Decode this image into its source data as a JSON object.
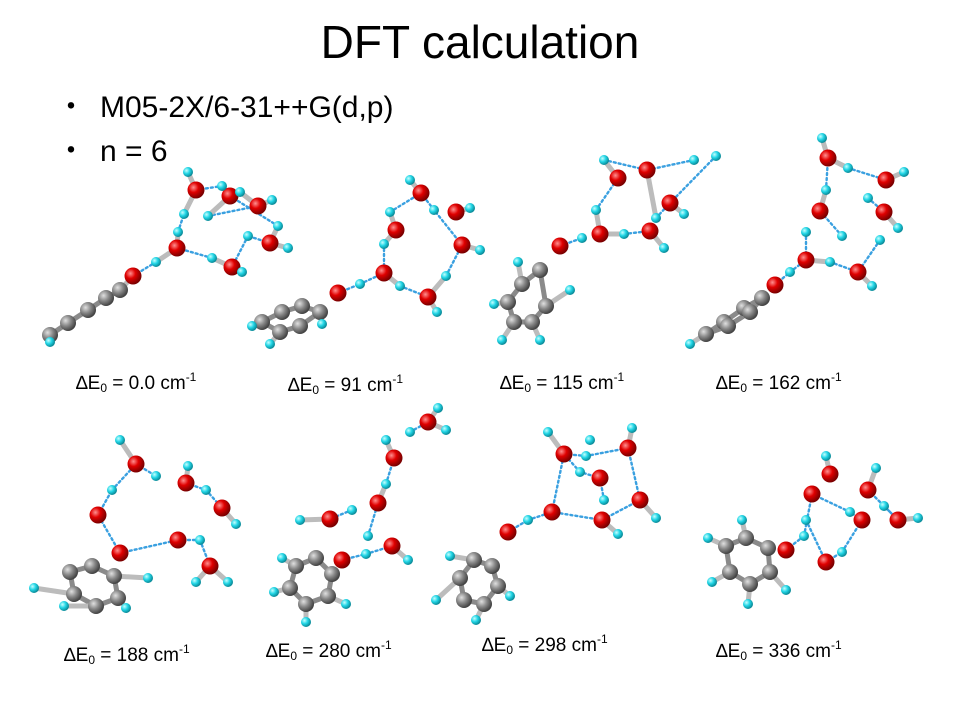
{
  "title": "DFT calculation",
  "bullets": [
    {
      "marker": "・",
      "text": "M05-2X/6-31++G(d,p)"
    },
    {
      "marker": "・",
      "text": "n = 6"
    }
  ],
  "energy_label": {
    "delta": "∆",
    "symbol": "E",
    "subscript": "0",
    "eq": " = ",
    "unit": " cm",
    "exponent": "-1"
  },
  "structures": [
    {
      "energy": "0.0"
    },
    {
      "energy": "91"
    },
    {
      "energy": "115"
    },
    {
      "energy": "162"
    },
    {
      "energy": "188"
    },
    {
      "energy": "280"
    },
    {
      "energy": "298"
    },
    {
      "energy": "336"
    }
  ],
  "colors": {
    "oxygen": "#dd0000",
    "hydrogen": "#27d8e8",
    "carbon": "#808080",
    "hbond": "#3aa0e0"
  }
}
